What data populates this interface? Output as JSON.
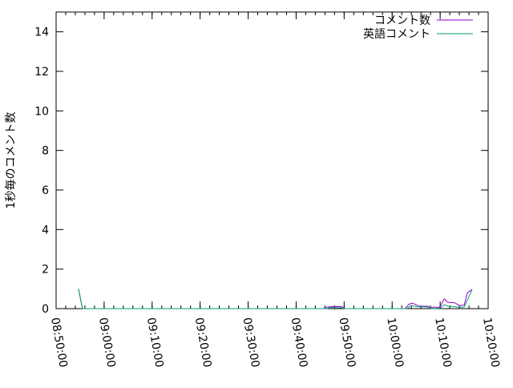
{
  "chart_data": {
    "type": "line",
    "title": "",
    "xlabel": "",
    "ylabel": "1秒毎のコメント数",
    "xlim": [
      "08:50:00",
      "10:20:00"
    ],
    "ylim": [
      0,
      15
    ],
    "x_ticks": [
      "08:50:00",
      "09:00:00",
      "09:10:00",
      "09:20:00",
      "09:30:00",
      "09:40:00",
      "09:50:00",
      "10:00:00",
      "10:10:00",
      "10:20:00"
    ],
    "y_ticks": [
      "0",
      "2",
      "4",
      "6",
      "8",
      "10",
      "12",
      "14"
    ],
    "legend_position": "top-right",
    "grid": false,
    "series": [
      {
        "name": "コメント数",
        "color": "#9400d3",
        "points": [
          [
            "08:54:40",
            1
          ],
          [
            "08:55:30",
            0
          ],
          [
            "09:00:00",
            0
          ],
          [
            "09:45:40",
            0
          ],
          [
            "09:46:30",
            0.08
          ],
          [
            "09:47:30",
            0.1
          ],
          [
            "09:49:30",
            0.1
          ],
          [
            "09:50:00",
            0
          ],
          [
            "10:02:40",
            0
          ],
          [
            "10:03:30",
            0.22
          ],
          [
            "10:04:10",
            0.28
          ],
          [
            "10:05:00",
            0.2
          ],
          [
            "10:05:30",
            0.12
          ],
          [
            "10:07:30",
            0.12
          ],
          [
            "10:08:00",
            0.03
          ],
          [
            "10:08:40",
            0.08
          ],
          [
            "10:09:40",
            0.06
          ],
          [
            "10:10:00",
            0.1
          ],
          [
            "10:10:50",
            0.49
          ],
          [
            "10:11:40",
            0.32
          ],
          [
            "10:13:00",
            0.3
          ],
          [
            "10:14:00",
            0.16
          ],
          [
            "10:15:00",
            0.18
          ],
          [
            "10:15:40",
            0.8
          ],
          [
            "10:16:40",
            0.97
          ]
        ]
      },
      {
        "name": "英語コメント",
        "color": "#009e73",
        "points": [
          [
            "08:54:40",
            1
          ],
          [
            "08:55:30",
            0
          ],
          [
            "09:00:00",
            0
          ],
          [
            "09:46:30",
            0
          ],
          [
            "09:47:00",
            0.06
          ],
          [
            "09:49:30",
            0.04
          ],
          [
            "09:50:00",
            0
          ],
          [
            "10:03:00",
            0
          ],
          [
            "10:04:00",
            0.16
          ],
          [
            "10:05:00",
            0.1
          ],
          [
            "10:07:30",
            0.08
          ],
          [
            "10:08:00",
            0
          ],
          [
            "10:10:00",
            0.02
          ],
          [
            "10:10:50",
            0.2
          ],
          [
            "10:11:40",
            0.12
          ],
          [
            "10:13:00",
            0.1
          ],
          [
            "10:14:00",
            0.06
          ],
          [
            "10:15:00",
            0.08
          ],
          [
            "10:16:00",
            0.6
          ],
          [
            "10:16:40",
            0.97
          ]
        ]
      }
    ]
  }
}
